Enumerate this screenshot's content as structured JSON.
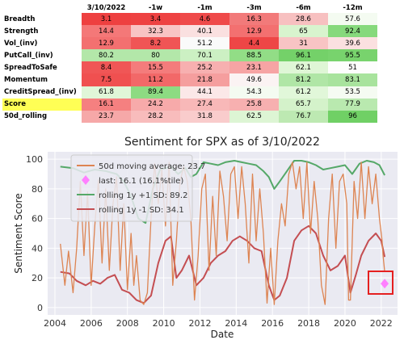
{
  "table": {
    "columns": [
      "3/10/2022",
      "-1w",
      "-1m",
      "-3m",
      "-6m",
      "-12m"
    ],
    "rows": [
      {
        "label": "Breadth",
        "values": [
          "3.1",
          "3.4",
          "4.6",
          "16.3",
          "28.6",
          "57.6"
        ],
        "colors": [
          "#ee4040",
          "#ee4242",
          "#ef4a4a",
          "#f27a7a",
          "#f7c0c0",
          "#f4fbf1"
        ]
      },
      {
        "label": "Strength",
        "values": [
          "14.4",
          "32.3",
          "40.1",
          "12.9",
          "65",
          "92.4"
        ],
        "colors": [
          "#f47878",
          "#f8c4c4",
          "#fae0e0",
          "#f37070",
          "#d8f4ce",
          "#86d97c"
        ]
      },
      {
        "label": "Vol_(inv)",
        "values": [
          "12.9",
          "8.2",
          "51.2",
          "4.4",
          "31",
          "39.6"
        ],
        "colors": [
          "#f37070",
          "#f05555",
          "#fafafa",
          "#ee4646",
          "#f8c4c4",
          "#fbe0e0"
        ]
      },
      {
        "label": "PutCall_(inv)",
        "values": [
          "80.2",
          "80",
          "70.1",
          "88.5",
          "96.1",
          "95.5"
        ],
        "colors": [
          "#b3e7a9",
          "#b3e7a9",
          "#ccf0c3",
          "#92dd86",
          "#74d169",
          "#78d36d"
        ]
      },
      {
        "label": "SpreadToSafe",
        "values": [
          "8.4",
          "15.5",
          "25.2",
          "23.1",
          "62.1",
          "51"
        ],
        "colors": [
          "#f05656",
          "#f47c7c",
          "#f7b0b0",
          "#f6a4a4",
          "#dff6d6",
          "#fdfdfd"
        ]
      },
      {
        "label": "Momentum",
        "values": [
          "7.5",
          "11.2",
          "21.8",
          "49.6",
          "81.2",
          "83.1"
        ],
        "colors": [
          "#f05050",
          "#f26868",
          "#f59e9e",
          "#fbf3f3",
          "#b0e6a6",
          "#a8e39d"
        ]
      },
      {
        "label": "CreditSpread_(inv)",
        "values": [
          "61.8",
          "89.4",
          "44.1",
          "54.3",
          "61.2",
          "53.5"
        ],
        "colors": [
          "#e0f6d8",
          "#8ddb82",
          "#fbe8e8",
          "#f4fbf1",
          "#e1f7d9",
          "#f5fbf2"
        ]
      },
      {
        "label": "Score",
        "values": [
          "16.1",
          "24.2",
          "27.4",
          "25.8",
          "65.7",
          "77.9"
        ],
        "colors": [
          "#f58080",
          "#f7aaaa",
          "#f8b8b8",
          "#f7b0b0",
          "#d4f2ca",
          "#b9e9af"
        ]
      },
      {
        "label": "50d_rolling",
        "values": [
          "23.7",
          "28.2",
          "31.8",
          "62.5",
          "76.7",
          "96"
        ],
        "colors": [
          "#f6a8a8",
          "#f8bcbc",
          "#f9cccc",
          "#ddf5d4",
          "#bde9b2",
          "#70d065"
        ]
      }
    ],
    "highlight_row": "Score"
  },
  "chart_data": {
    "type": "line",
    "title": "Sentiment for SPX as of 3/10/2022",
    "xlabel": "Date",
    "ylabel": "Sentiment Score",
    "xlim": [
      2003.6,
      2022.9
    ],
    "ylim": [
      -5,
      105
    ],
    "x_ticks": [
      2004,
      2006,
      2008,
      2010,
      2012,
      2014,
      2016,
      2018,
      2020,
      2022
    ],
    "y_ticks": [
      0,
      20,
      40,
      60,
      80,
      100
    ],
    "grid": true,
    "legend_position": "top-left",
    "series": [
      {
        "name": "50d moving average: 23.7",
        "color": "#dd8452",
        "style": "line",
        "points": [
          [
            2004.3,
            43
          ],
          [
            2004.55,
            15
          ],
          [
            2004.75,
            38
          ],
          [
            2005.0,
            10
          ],
          [
            2005.2,
            40
          ],
          [
            2005.4,
            85
          ],
          [
            2005.6,
            35
          ],
          [
            2005.8,
            78
          ],
          [
            2006.0,
            15
          ],
          [
            2006.2,
            55
          ],
          [
            2006.4,
            86
          ],
          [
            2006.6,
            30
          ],
          [
            2006.8,
            80
          ],
          [
            2007.0,
            25
          ],
          [
            2007.2,
            70
          ],
          [
            2007.4,
            88
          ],
          [
            2007.6,
            25
          ],
          [
            2007.8,
            70
          ],
          [
            2008.0,
            12
          ],
          [
            2008.2,
            50
          ],
          [
            2008.35,
            15
          ],
          [
            2008.5,
            35
          ],
          [
            2008.7,
            5
          ],
          [
            2008.9,
            2
          ],
          [
            2009.1,
            10
          ],
          [
            2009.3,
            60
          ],
          [
            2009.5,
            97
          ],
          [
            2009.7,
            70
          ],
          [
            2009.9,
            93
          ],
          [
            2010.1,
            55
          ],
          [
            2010.3,
            98
          ],
          [
            2010.5,
            15
          ],
          [
            2010.7,
            45
          ],
          [
            2010.9,
            85
          ],
          [
            2011.1,
            95
          ],
          [
            2011.3,
            85
          ],
          [
            2011.5,
            60
          ],
          [
            2011.7,
            5
          ],
          [
            2011.9,
            35
          ],
          [
            2012.1,
            80
          ],
          [
            2012.3,
            90
          ],
          [
            2012.5,
            25
          ],
          [
            2012.7,
            75
          ],
          [
            2012.9,
            35
          ],
          [
            2013.1,
            92
          ],
          [
            2013.3,
            75
          ],
          [
            2013.5,
            45
          ],
          [
            2013.7,
            90
          ],
          [
            2013.9,
            95
          ],
          [
            2014.1,
            60
          ],
          [
            2014.3,
            95
          ],
          [
            2014.5,
            70
          ],
          [
            2014.7,
            30
          ],
          [
            2014.9,
            90
          ],
          [
            2015.1,
            45
          ],
          [
            2015.3,
            80
          ],
          [
            2015.5,
            50
          ],
          [
            2015.7,
            3
          ],
          [
            2015.9,
            40
          ],
          [
            2016.1,
            2
          ],
          [
            2016.3,
            45
          ],
          [
            2016.5,
            70
          ],
          [
            2016.7,
            55
          ],
          [
            2016.9,
            90
          ],
          [
            2017.1,
            98
          ],
          [
            2017.3,
            80
          ],
          [
            2017.5,
            95
          ],
          [
            2017.7,
            60
          ],
          [
            2017.9,
            98
          ],
          [
            2018.1,
            50
          ],
          [
            2018.3,
            85
          ],
          [
            2018.5,
            60
          ],
          [
            2018.7,
            15
          ],
          [
            2018.9,
            2
          ],
          [
            2019.1,
            60
          ],
          [
            2019.3,
            90
          ],
          [
            2019.5,
            40
          ],
          [
            2019.7,
            85
          ],
          [
            2019.9,
            90
          ],
          [
            2020.1,
            70
          ],
          [
            2020.2,
            5
          ],
          [
            2020.3,
            5
          ],
          [
            2020.5,
            85
          ],
          [
            2020.7,
            60
          ],
          [
            2020.9,
            98
          ],
          [
            2021.1,
            60
          ],
          [
            2021.3,
            95
          ],
          [
            2021.5,
            70
          ],
          [
            2021.7,
            90
          ],
          [
            2021.9,
            60
          ],
          [
            2022.05,
            45
          ],
          [
            2022.1,
            35
          ],
          [
            2022.19,
            24
          ]
        ]
      },
      {
        "name": "rolling 1y +1 SD: 89.2",
        "color": "#55a868",
        "style": "line",
        "points": [
          [
            2004.3,
            95
          ],
          [
            2005.0,
            94
          ],
          [
            2005.6,
            91
          ],
          [
            2006.2,
            93
          ],
          [
            2006.8,
            92
          ],
          [
            2007.4,
            90
          ],
          [
            2007.8,
            85
          ],
          [
            2008.2,
            75
          ],
          [
            2008.6,
            60
          ],
          [
            2009.0,
            57
          ],
          [
            2009.4,
            80
          ],
          [
            2009.8,
            93
          ],
          [
            2010.4,
            95
          ],
          [
            2010.8,
            90
          ],
          [
            2011.2,
            94
          ],
          [
            2011.5,
            88
          ],
          [
            2011.8,
            90
          ],
          [
            2012.2,
            98
          ],
          [
            2012.6,
            97
          ],
          [
            2013.0,
            96
          ],
          [
            2013.4,
            98
          ],
          [
            2013.9,
            99
          ],
          [
            2014.3,
            98
          ],
          [
            2014.7,
            97
          ],
          [
            2015.1,
            96
          ],
          [
            2015.5,
            92
          ],
          [
            2015.8,
            88
          ],
          [
            2016.1,
            80
          ],
          [
            2016.4,
            85
          ],
          [
            2016.8,
            92
          ],
          [
            2017.2,
            99
          ],
          [
            2017.6,
            99
          ],
          [
            2018.0,
            98
          ],
          [
            2018.4,
            96
          ],
          [
            2018.8,
            93
          ],
          [
            2019.2,
            94
          ],
          [
            2019.6,
            95
          ],
          [
            2020.0,
            96
          ],
          [
            2020.4,
            90
          ],
          [
            2020.8,
            97
          ],
          [
            2021.2,
            99
          ],
          [
            2021.6,
            98
          ],
          [
            2021.9,
            96
          ],
          [
            2022.19,
            89.2
          ]
        ]
      },
      {
        "name": "rolling 1y -1 SD: 34.1",
        "color": "#c44e52",
        "style": "line",
        "points": [
          [
            2004.3,
            24
          ],
          [
            2004.8,
            23
          ],
          [
            2005.2,
            18
          ],
          [
            2005.7,
            15
          ],
          [
            2006.1,
            18
          ],
          [
            2006.5,
            16
          ],
          [
            2006.9,
            20
          ],
          [
            2007.3,
            22
          ],
          [
            2007.7,
            12
          ],
          [
            2008.1,
            10
          ],
          [
            2008.5,
            5
          ],
          [
            2008.9,
            3
          ],
          [
            2009.3,
            8
          ],
          [
            2009.7,
            30
          ],
          [
            2010.1,
            45
          ],
          [
            2010.4,
            48
          ],
          [
            2010.7,
            20
          ],
          [
            2011.0,
            25
          ],
          [
            2011.4,
            35
          ],
          [
            2011.8,
            15
          ],
          [
            2012.2,
            20
          ],
          [
            2012.6,
            30
          ],
          [
            2013.0,
            35
          ],
          [
            2013.4,
            38
          ],
          [
            2013.8,
            45
          ],
          [
            2014.2,
            48
          ],
          [
            2014.6,
            45
          ],
          [
            2015.0,
            40
          ],
          [
            2015.4,
            38
          ],
          [
            2015.8,
            15
          ],
          [
            2016.1,
            5
          ],
          [
            2016.4,
            8
          ],
          [
            2016.8,
            20
          ],
          [
            2017.2,
            45
          ],
          [
            2017.6,
            52
          ],
          [
            2018.0,
            55
          ],
          [
            2018.4,
            50
          ],
          [
            2018.8,
            35
          ],
          [
            2019.2,
            25
          ],
          [
            2019.6,
            28
          ],
          [
            2020.0,
            35
          ],
          [
            2020.3,
            10
          ],
          [
            2020.6,
            22
          ],
          [
            2020.9,
            35
          ],
          [
            2021.3,
            45
          ],
          [
            2021.7,
            50
          ],
          [
            2022.0,
            45
          ],
          [
            2022.19,
            34.1
          ]
        ]
      },
      {
        "name": "last: 16.1 (16.1%tile)",
        "color": "#ff80ff",
        "style": "marker",
        "points": [
          [
            2022.19,
            16.1
          ]
        ]
      }
    ]
  }
}
